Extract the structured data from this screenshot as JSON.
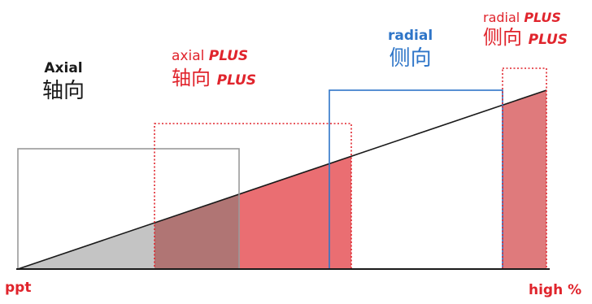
{
  "labels": {
    "axial": {
      "en": "Axial",
      "zh": "轴向"
    },
    "axial_plus": {
      "en": "axial",
      "plus": "PLUS",
      "zh": "轴向",
      "zh_plus": "PLUS"
    },
    "radial": {
      "en": "radial",
      "zh": "侧向"
    },
    "radial_plus": {
      "en": "radial",
      "plus": "PLUS",
      "zh": "侧向",
      "zh_plus": "PLUS"
    },
    "axis_left": "ppt",
    "axis_right": "high %"
  },
  "colors": {
    "axial": "#9a9a9a",
    "axial_plus": "#e0242c",
    "radial": "#2e75c8",
    "radial_plus": "#e0242c",
    "fill_grey": "#c4c4c4",
    "fill_red": "#ea6e72",
    "fill_overlap": "#b07574"
  }
}
